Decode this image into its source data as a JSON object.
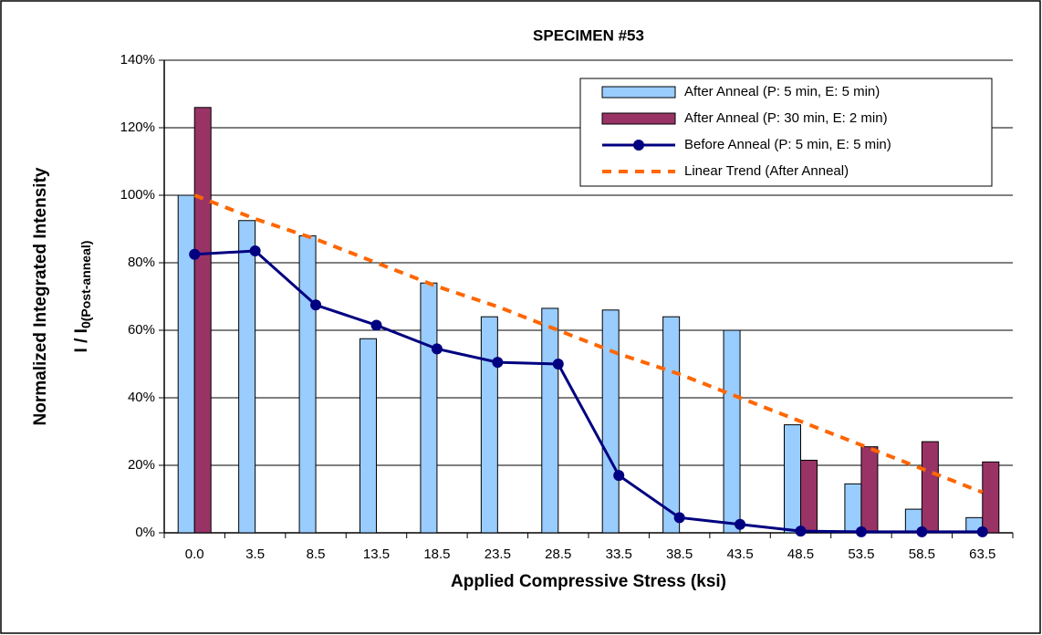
{
  "chart_data": {
    "type": "bar",
    "title": "SPECIMEN #53",
    "xlabel": "Applied Compressive Stress (ksi)",
    "ylabel": [
      "Normalized Integrated Intensity",
      "I / I",
      "0(Post-anneal)"
    ],
    "categories": [
      "0.0",
      "3.5",
      "8.5",
      "13.5",
      "18.5",
      "23.5",
      "28.5",
      "33.5",
      "38.5",
      "43.5",
      "48.5",
      "53.5",
      "58.5",
      "63.5"
    ],
    "series": [
      {
        "name": "After Anneal (P: 5 min, E: 5 min)",
        "type": "bar",
        "color": "#99ccff",
        "values": [
          100,
          92.5,
          88,
          57.5,
          74,
          64,
          66.5,
          66,
          64,
          60,
          32,
          14.5,
          7,
          4.5
        ]
      },
      {
        "name": "After Anneal (P: 30 min, E: 2 min)",
        "type": "bar",
        "color": "#993366",
        "values": [
          126,
          null,
          null,
          null,
          null,
          null,
          null,
          null,
          null,
          null,
          21.5,
          25.5,
          27,
          21
        ]
      },
      {
        "name": "Before Anneal (P: 5 min, E: 5 min)",
        "type": "line",
        "color": "#000080",
        "marker": "circle",
        "values": [
          82.5,
          83.5,
          67.5,
          61.5,
          54.5,
          50.5,
          50,
          17,
          4.5,
          2.5,
          0.5,
          0.3,
          0.3,
          0.3
        ]
      },
      {
        "name": "Linear Trend (After Anneal)",
        "type": "line",
        "color": "#ff6600",
        "dashed": true,
        "values": [
          100,
          93,
          87,
          80,
          73,
          67,
          60,
          53,
          47,
          40,
          33,
          26,
          19,
          12
        ]
      }
    ],
    "ylim": [
      0,
      140
    ],
    "yticks": [
      {
        "value": 0,
        "label": "0%"
      },
      {
        "value": 20,
        "label": "20%"
      },
      {
        "value": 40,
        "label": "40%"
      },
      {
        "value": 60,
        "label": "60%"
      },
      {
        "value": 80,
        "label": "80%"
      },
      {
        "value": 100,
        "label": "100%"
      },
      {
        "value": 120,
        "label": "120%"
      },
      {
        "value": 140,
        "label": "140%"
      }
    ],
    "grid": true,
    "legend": "top-right"
  }
}
